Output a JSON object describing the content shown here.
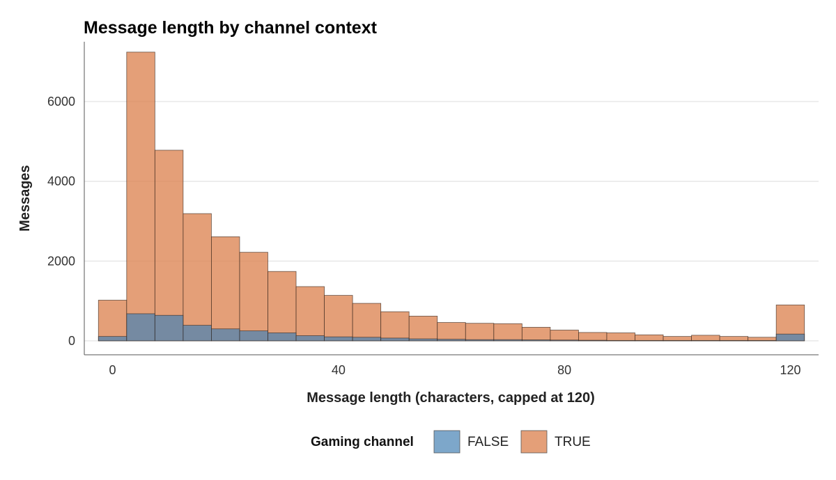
{
  "chart_data": {
    "type": "bar",
    "title": "Message length by channel context",
    "xlabel": "Message length (characters, capped at 120)",
    "ylabel": "Messages",
    "xlim": [
      -5,
      125
    ],
    "ylim": [
      -350,
      7500
    ],
    "x_ticks": [
      0,
      40,
      80,
      120
    ],
    "y_ticks": [
      0,
      2000,
      4000,
      6000
    ],
    "grid": "horizontal",
    "bin_width": 5,
    "bin_centers": [
      0,
      5,
      10,
      15,
      20,
      25,
      30,
      35,
      40,
      45,
      50,
      55,
      60,
      65,
      70,
      75,
      80,
      85,
      90,
      95,
      100,
      105,
      110,
      115,
      120
    ],
    "legend": {
      "title": "Gaming channel",
      "placement": "bottom",
      "entries": [
        "FALSE",
        "TRUE"
      ]
    },
    "series": [
      {
        "name": "FALSE",
        "color": "#4682b4",
        "opacity": 0.7,
        "values": [
          110,
          680,
          640,
          390,
          300,
          250,
          200,
          130,
          100,
          90,
          70,
          50,
          40,
          30,
          30,
          25,
          20,
          15,
          10,
          10,
          10,
          10,
          10,
          10,
          170
        ]
      },
      {
        "name": "TRUE",
        "color": "#dd8452",
        "opacity": 0.78,
        "values": [
          1020,
          7240,
          4780,
          3190,
          2610,
          2220,
          1740,
          1360,
          1140,
          940,
          730,
          620,
          460,
          440,
          430,
          340,
          270,
          210,
          200,
          150,
          110,
          140,
          110,
          90,
          900
        ]
      }
    ]
  }
}
